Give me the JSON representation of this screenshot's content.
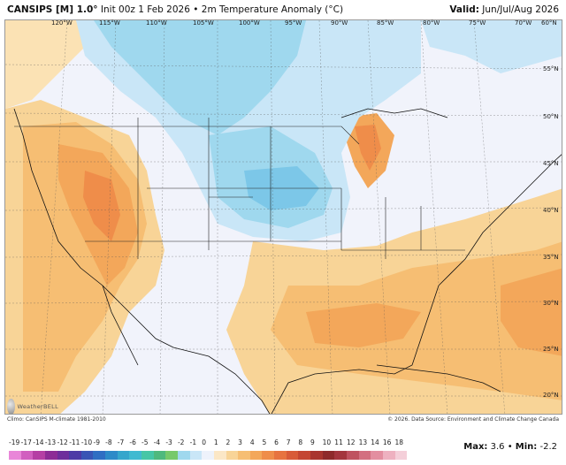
{
  "header": {
    "model": "CANSIPS [M] 1.0°",
    "init": "Init 00z 1 Feb 2026 • 2m Temperature Anomaly (°C)",
    "valid_label": "Valid:",
    "valid_value": "Jun/Jul/Aug 2026"
  },
  "longitude_labels": [
    "120°W",
    "115°W",
    "110°W",
    "105°W",
    "100°W",
    "95°W",
    "90°W",
    "85°W",
    "80°W",
    "75°W",
    "70°W",
    "60°N"
  ],
  "latitude_labels": [
    "55°N",
    "50°N",
    "45°N",
    "40°N",
    "35°N",
    "30°N",
    "25°N",
    "20°N"
  ],
  "climo_note": "Climo: CanSIPS M-climate 1981-2010",
  "copyright": "© 2026. Data Source: Environment and Climate Change Canada",
  "logo_text": "WeatherBELL",
  "scale": {
    "labels": [
      "-19",
      "-17",
      "-14",
      "-13",
      "-12",
      "-11",
      "-10",
      "-9",
      "-8",
      "-7",
      "-6",
      "-5",
      "-4",
      "-3",
      "-2",
      "-1",
      "0",
      "1",
      "2",
      "3",
      "4",
      "5",
      "6",
      "7",
      "8",
      "9",
      "10",
      "11",
      "12",
      "13",
      "14",
      "16",
      "18"
    ],
    "colors": [
      "#e986d8",
      "#d15fbf",
      "#b53fa4",
      "#8d2c96",
      "#6e2e9c",
      "#4d3aa6",
      "#3955b5",
      "#2f6ec3",
      "#2d8ac8",
      "#35a6cc",
      "#3fbad1",
      "#46c6a6",
      "#4fb97d",
      "#76c96a",
      "#9fd8ee",
      "#c9e6f7",
      "#eef2fb",
      "#fbe7c6",
      "#f8d497",
      "#f6be73",
      "#f3a75a",
      "#ef8d4a",
      "#e7733f",
      "#d85b38",
      "#c44632",
      "#a9352f",
      "#8e2a2b",
      "#a4363e",
      "#bf5260",
      "#d36f80",
      "#e38ea0",
      "#eeb1c0",
      "#f4cfd9"
    ]
  },
  "stats": {
    "max_label": "Max:",
    "max_value": "3.6",
    "min_label": "Min:",
    "min_value": "-2.2"
  }
}
